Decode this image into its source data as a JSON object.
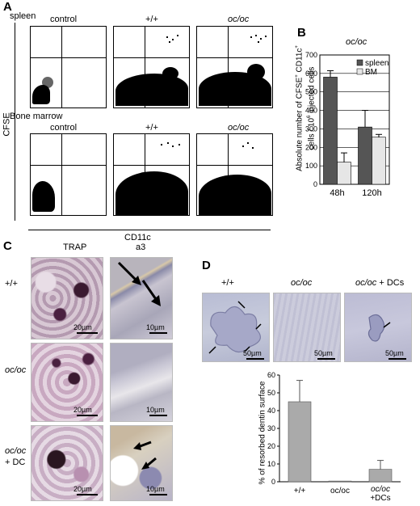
{
  "panelA": {
    "letter": "A",
    "y_axis": "CFSE",
    "x_axis": "CD11c",
    "rows": [
      {
        "label": "spleen",
        "plots": [
          {
            "title": "control",
            "italic": false
          },
          {
            "title": "+/+",
            "italic": false
          },
          {
            "title": "oc/oc",
            "italic": true
          }
        ]
      },
      {
        "label": "Bone marrow",
        "plots": [
          {
            "title": "control",
            "italic": false
          },
          {
            "title": "+/+",
            "italic": false
          },
          {
            "title": "oc/oc",
            "italic": true
          }
        ]
      }
    ]
  },
  "panelB": {
    "letter": "B",
    "title": "oc/oc",
    "ylabel_line1": "Absolute number of CFSE",
    "ylabel_line2": "CD11c",
    "ylabel_line3": "cells / 10",
    "ylabel_line4": "injected cells",
    "legend_spleen": "spleen",
    "legend_bm": "BM",
    "colors": {
      "spleen": "#555555",
      "bm": "#e6e6e6"
    }
  },
  "panelC": {
    "letter": "C",
    "col_trap": "TRAP",
    "col_a3": "a3",
    "row1": "+/+",
    "row2": "oc/oc",
    "row3a": "oc/oc",
    "row3b": "+ DC",
    "scale_20": "20",
    "scale_10": "10",
    "unit": "µm"
  },
  "panelD": {
    "letter": "D",
    "top1": "+/+",
    "top2": "oc/oc",
    "top3a": "oc/oc",
    "top3b": "+ DCs",
    "scale": "50",
    "unit": "µm"
  },
  "chart_data": [
    {
      "type": "bar",
      "panel": "B",
      "title": "oc/oc",
      "categories": [
        "48h",
        "120h"
      ],
      "series": [
        {
          "name": "spleen",
          "values": [
            580,
            310
          ],
          "errors": [
            35,
            90
          ]
        },
        {
          "name": "BM",
          "values": [
            120,
            255
          ],
          "errors": [
            50,
            15
          ]
        }
      ],
      "ylim": [
        0,
        700
      ],
      "yticks": [
        0,
        100,
        200,
        300,
        400,
        500,
        600,
        700
      ],
      "ylabel": "Absolute number of CFSE CD11c+ cells / 10^6 injected cells",
      "grid": true,
      "legend": "top-right"
    },
    {
      "type": "bar",
      "panel": "D",
      "categories": [
        "+/+",
        "oc/oc",
        "oc/oc +DCs"
      ],
      "values": [
        45,
        0.4,
        7
      ],
      "errors": [
        12,
        0,
        5
      ],
      "ylim": [
        0,
        60
      ],
      "yticks": [
        0,
        10,
        20,
        30,
        40,
        50,
        60
      ],
      "ylabel": "% of resorbed dentin surface",
      "color": "#aaaaaa"
    }
  ]
}
